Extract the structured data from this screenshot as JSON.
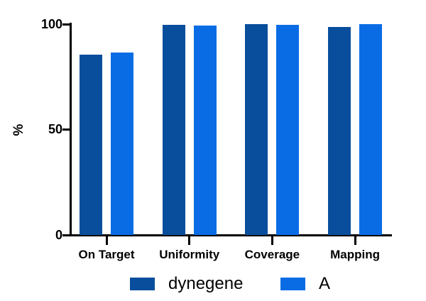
{
  "chart_data": {
    "type": "bar",
    "title": "",
    "categories": [
      "On Target",
      "Uniformity",
      "Coverage",
      "Mapping"
    ],
    "series": [
      {
        "name": "dynegene",
        "color": "#084E9C",
        "values": [
          85.5,
          99.5,
          100,
          98.5
        ]
      },
      {
        "name": "A",
        "color": "#0A6CE4",
        "values": [
          86.5,
          99,
          99.5,
          100
        ]
      }
    ],
    "xlabel": "",
    "ylabel": "%",
    "ylim": [
      0,
      100
    ],
    "yticks": [
      0,
      50,
      100
    ],
    "ytick_labels": [
      "0",
      "50",
      "100"
    ],
    "grid": false,
    "legend_position": "bottom",
    "axis_color": "#000000",
    "background_color": "#ffffff"
  },
  "legend_x_positions": [
    183,
    395
  ]
}
